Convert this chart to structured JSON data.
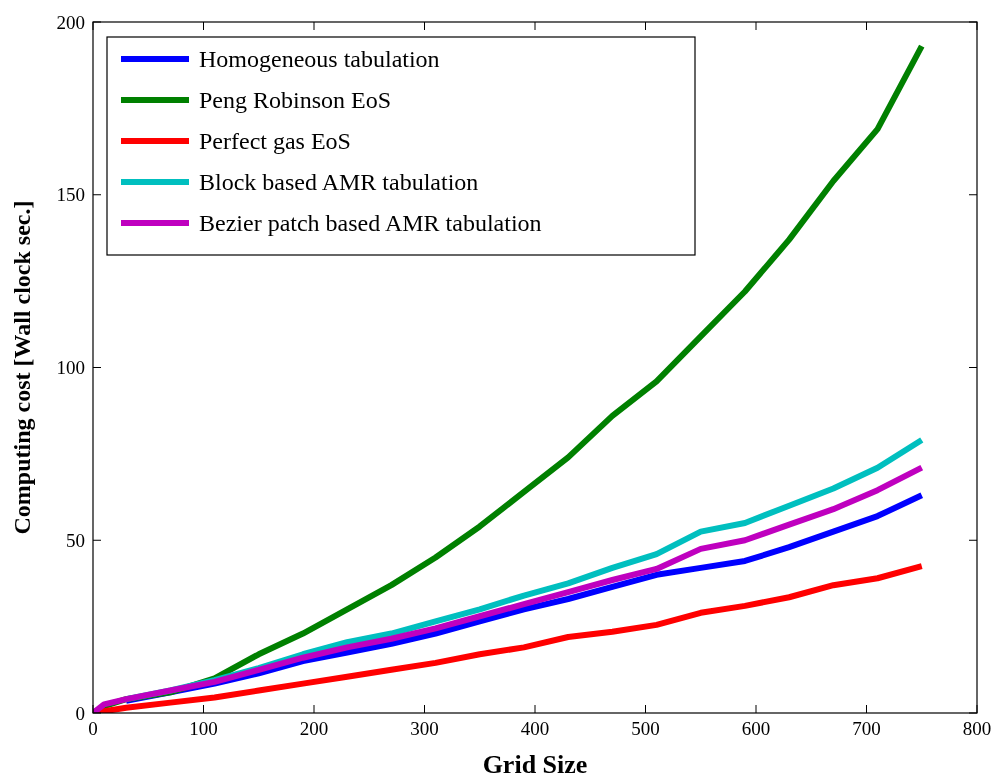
{
  "chart_data": {
    "type": "line",
    "xlabel": "Grid Size",
    "ylabel": "Computing cost [Wall clock sec.]",
    "x": [
      0,
      10,
      30,
      70,
      110,
      150,
      190,
      230,
      270,
      310,
      350,
      390,
      430,
      470,
      510,
      550,
      590,
      630,
      670,
      710,
      750
    ],
    "series": [
      {
        "name": "Homogeneous tabulation",
        "color": "#0000ff",
        "values": [
          null,
          null,
          3.5,
          6,
          8.5,
          11.5,
          15,
          17.5,
          20,
          23,
          26.5,
          30,
          33,
          36.5,
          40,
          42,
          44,
          48,
          52.5,
          57,
          63
        ]
      },
      {
        "name": "Peng Robinson EoS",
        "color": "#008000",
        "values": [
          0,
          2,
          4,
          6,
          10,
          17,
          23,
          30,
          37,
          45,
          54,
          64,
          74,
          86,
          96,
          109,
          122,
          137,
          154,
          169,
          193
        ]
      },
      {
        "name": "Perfect gas EoS",
        "color": "#ff0000",
        "values": [
          0,
          0.5,
          1.5,
          3,
          4.5,
          6.5,
          8.5,
          10.5,
          12.5,
          14.5,
          17,
          19,
          22,
          23.5,
          25.5,
          29,
          31,
          33.5,
          37,
          39,
          42.5
        ]
      },
      {
        "name": "Block based AMR tabulation",
        "color": "#00bfbf",
        "values": [
          null,
          null,
          4,
          6.5,
          9.5,
          13,
          17,
          20.5,
          23,
          26.5,
          30,
          34,
          37.5,
          42,
          46,
          52.5,
          55,
          60,
          65,
          71,
          79
        ]
      },
      {
        "name": "Bezier patch based AMR tabulation",
        "color": "#bf00bf",
        "values": [
          0,
          2.5,
          4,
          6.5,
          9,
          12.5,
          16,
          19,
          21.5,
          24.5,
          28,
          31.5,
          35,
          38.5,
          41.7,
          47.5,
          50,
          54.5,
          59,
          64.5,
          71
        ]
      }
    ],
    "xlim": [
      0,
      800
    ],
    "xticks": [
      0,
      100,
      200,
      300,
      400,
      500,
      600,
      700,
      800
    ],
    "ylim": [
      0,
      200
    ],
    "yticks": [
      0,
      50,
      100,
      150,
      200
    ],
    "legend": "top left",
    "grid": false
  }
}
